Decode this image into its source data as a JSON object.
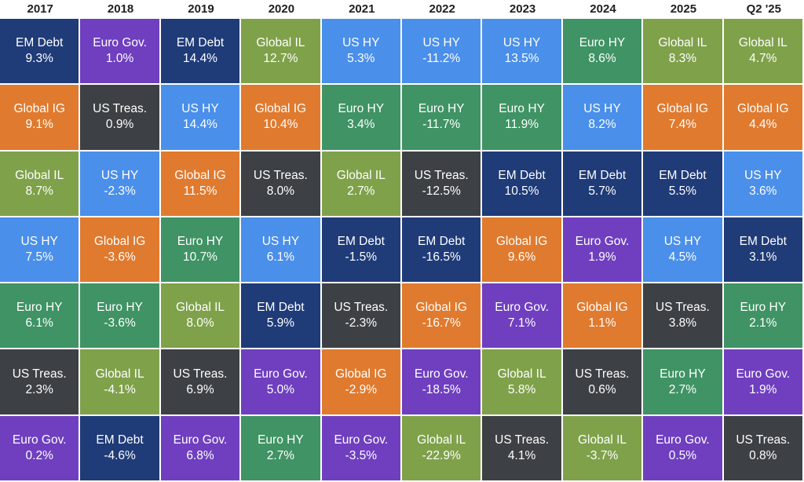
{
  "chart_data": {
    "type": "table",
    "title": "",
    "categories": [
      "2017",
      "2018",
      "2019",
      "2020",
      "2021",
      "2022",
      "2023",
      "2024",
      "2025",
      "Q2 '25"
    ],
    "colors": {
      "EM Debt": "#1f3b78",
      "Euro Gov.": "#6f3fbf",
      "Global IL": "#7fa14a",
      "US HY": "#4a8fea",
      "Global IG": "#e07a2e",
      "US Treas.": "#3d4145",
      "Euro HY": "#3f9364"
    },
    "columns": [
      [
        {
          "name": "EM Debt",
          "value": "9.3%"
        },
        {
          "name": "Global IG",
          "value": "9.1%"
        },
        {
          "name": "Global IL",
          "value": "8.7%"
        },
        {
          "name": "US HY",
          "value": "7.5%"
        },
        {
          "name": "Euro HY",
          "value": "6.1%"
        },
        {
          "name": "US Treas.",
          "value": "2.3%"
        },
        {
          "name": "Euro Gov.",
          "value": "0.2%"
        }
      ],
      [
        {
          "name": "Euro Gov.",
          "value": "1.0%"
        },
        {
          "name": "US Treas.",
          "value": "0.9%"
        },
        {
          "name": "US HY",
          "value": "-2.3%"
        },
        {
          "name": "Global IG",
          "value": "-3.6%"
        },
        {
          "name": "Euro HY",
          "value": "-3.6%"
        },
        {
          "name": "Global IL",
          "value": "-4.1%"
        },
        {
          "name": "EM Debt",
          "value": "-4.6%"
        }
      ],
      [
        {
          "name": "EM Debt",
          "value": "14.4%"
        },
        {
          "name": "US HY",
          "value": "14.4%"
        },
        {
          "name": "Global IG",
          "value": "11.5%"
        },
        {
          "name": "Euro HY",
          "value": "10.7%"
        },
        {
          "name": "Global IL",
          "value": "8.0%"
        },
        {
          "name": "US Treas.",
          "value": "6.9%"
        },
        {
          "name": "Euro Gov.",
          "value": "6.8%"
        }
      ],
      [
        {
          "name": "Global IL",
          "value": "12.7%"
        },
        {
          "name": "Global IG",
          "value": "10.4%"
        },
        {
          "name": "US Treas.",
          "value": "8.0%"
        },
        {
          "name": "US HY",
          "value": "6.1%"
        },
        {
          "name": "EM Debt",
          "value": "5.9%"
        },
        {
          "name": "Euro Gov.",
          "value": "5.0%"
        },
        {
          "name": "Euro HY",
          "value": "2.7%"
        }
      ],
      [
        {
          "name": "US HY",
          "value": "5.3%"
        },
        {
          "name": "Euro HY",
          "value": "3.4%"
        },
        {
          "name": "Global IL",
          "value": "2.7%"
        },
        {
          "name": "EM Debt",
          "value": "-1.5%"
        },
        {
          "name": "US Treas.",
          "value": "-2.3%"
        },
        {
          "name": "Global IG",
          "value": "-2.9%"
        },
        {
          "name": "Euro Gov.",
          "value": "-3.5%"
        }
      ],
      [
        {
          "name": "US HY",
          "value": "-11.2%"
        },
        {
          "name": "Euro HY",
          "value": "-11.7%"
        },
        {
          "name": "US Treas.",
          "value": "-12.5%"
        },
        {
          "name": "EM Debt",
          "value": "-16.5%"
        },
        {
          "name": "Global IG",
          "value": "-16.7%"
        },
        {
          "name": "Euro Gov.",
          "value": "-18.5%"
        },
        {
          "name": "Global IL",
          "value": "-22.9%"
        }
      ],
      [
        {
          "name": "US HY",
          "value": "13.5%"
        },
        {
          "name": "Euro HY",
          "value": "11.9%"
        },
        {
          "name": "EM Debt",
          "value": "10.5%"
        },
        {
          "name": "Global IG",
          "value": "9.6%"
        },
        {
          "name": "Euro Gov.",
          "value": "7.1%"
        },
        {
          "name": "Global IL",
          "value": "5.8%"
        },
        {
          "name": "US Treas.",
          "value": "4.1%"
        }
      ],
      [
        {
          "name": "Euro HY",
          "value": "8.6%"
        },
        {
          "name": "US HY",
          "value": "8.2%"
        },
        {
          "name": "EM Debt",
          "value": "5.7%"
        },
        {
          "name": "Euro Gov.",
          "value": "1.9%"
        },
        {
          "name": "Global IG",
          "value": "1.1%"
        },
        {
          "name": "US Treas.",
          "value": "0.6%"
        },
        {
          "name": "Global IL",
          "value": "-3.7%"
        }
      ],
      [
        {
          "name": "Global IL",
          "value": "8.3%"
        },
        {
          "name": "Global IG",
          "value": "7.4%"
        },
        {
          "name": "EM Debt",
          "value": "5.5%"
        },
        {
          "name": "US HY",
          "value": "4.5%"
        },
        {
          "name": "US Treas.",
          "value": "3.8%"
        },
        {
          "name": "Euro HY",
          "value": "2.7%"
        },
        {
          "name": "Euro Gov.",
          "value": "0.5%"
        }
      ],
      [
        {
          "name": "Global IL",
          "value": "4.7%"
        },
        {
          "name": "Global IG",
          "value": "4.4%"
        },
        {
          "name": "US HY",
          "value": "3.6%"
        },
        {
          "name": "EM Debt",
          "value": "3.1%"
        },
        {
          "name": "Euro HY",
          "value": "2.1%"
        },
        {
          "name": "Euro Gov.",
          "value": "1.9%"
        },
        {
          "name": "US Treas.",
          "value": "0.8%"
        }
      ]
    ]
  }
}
